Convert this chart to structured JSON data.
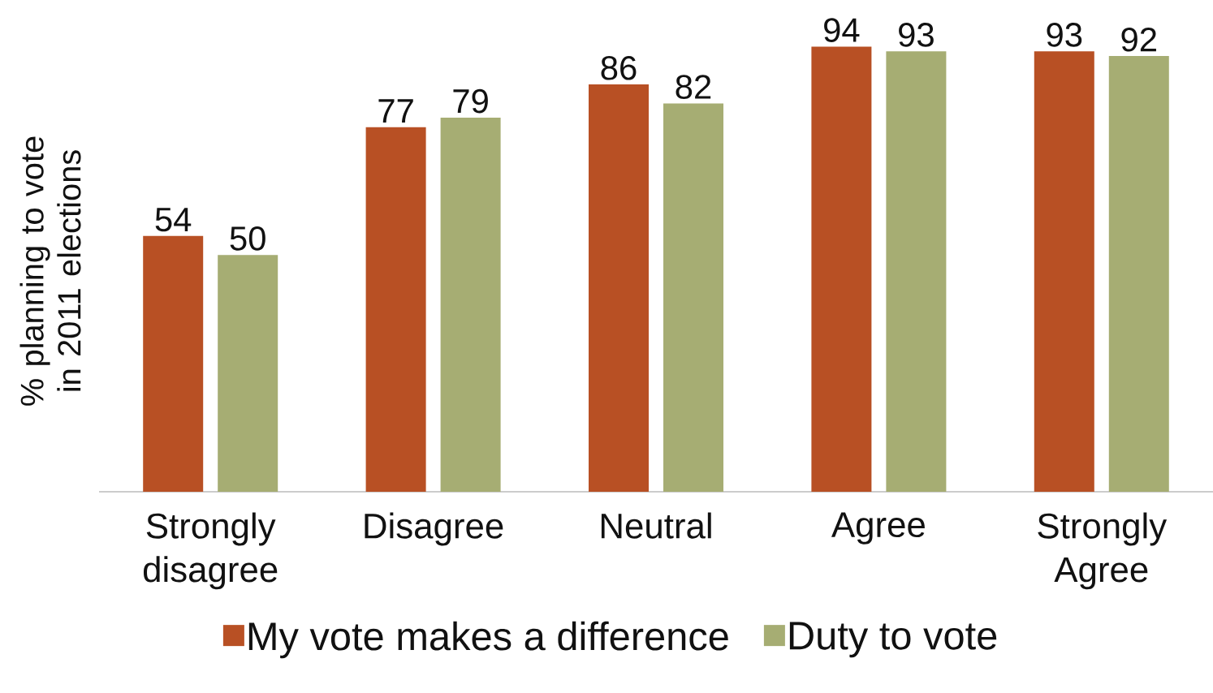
{
  "chart_data": {
    "type": "bar",
    "ylabel": "% planning to vote in 2011 elections",
    "categories": [
      "Strongly disagree",
      "Disagree",
      "Neutral",
      "Agree",
      "Strongly Agree"
    ],
    "series": [
      {
        "name": "My vote makes a difference",
        "color": "#b85024",
        "values": [
          54,
          77,
          86,
          94,
          93
        ]
      },
      {
        "name": "Duty to vote",
        "color": "#a6ad73",
        "values": [
          50,
          79,
          82,
          93,
          92
        ]
      }
    ],
    "data_labels": true,
    "legend": "bottom"
  }
}
